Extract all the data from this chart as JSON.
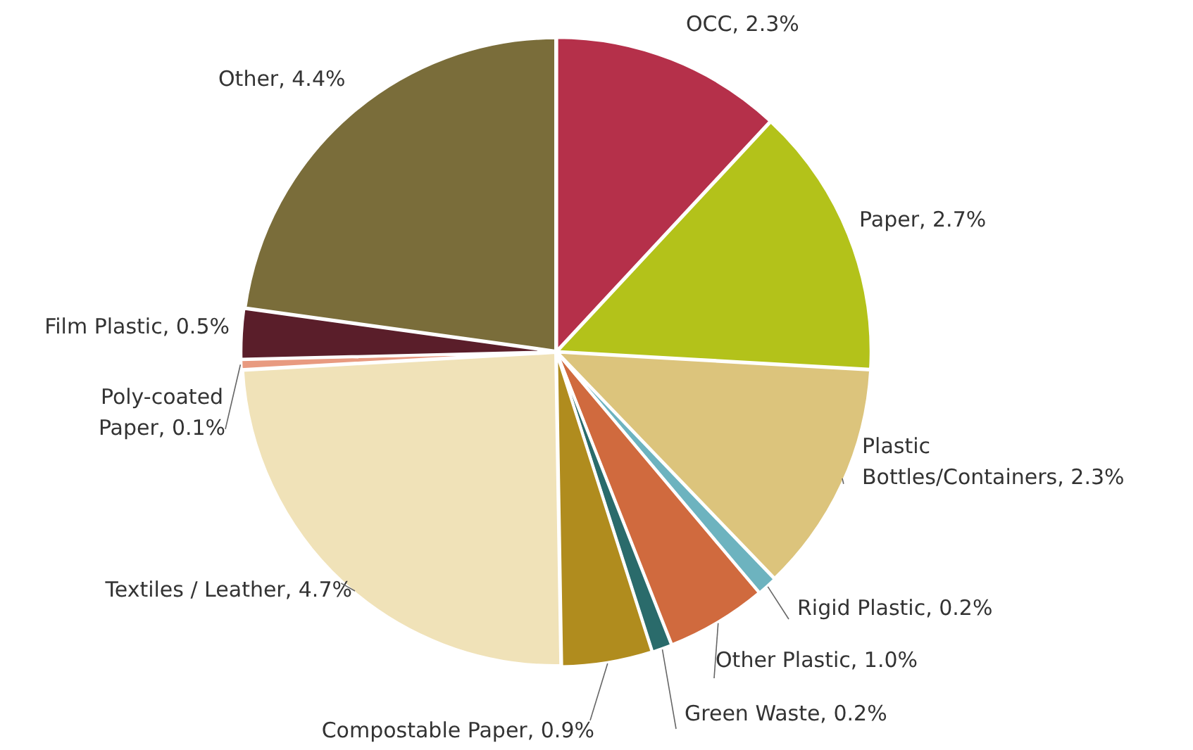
{
  "chart_data": {
    "type": "pie",
    "categories": [
      "OCC",
      "Paper",
      "Plastic Bottles/Containers",
      "Rigid Plastic",
      "Other Plastic",
      "Green Waste",
      "Compostable Paper",
      "Textiles / Leather",
      "Poly-coated Paper",
      "Film Plastic",
      "Other"
    ],
    "values": [
      2.3,
      2.7,
      2.3,
      0.2,
      1.0,
      0.2,
      0.9,
      4.7,
      0.1,
      0.5,
      4.4
    ],
    "value_labels": [
      "2.3%",
      "2.7%",
      "2.3%",
      "0.2%",
      "1.0%",
      "0.2%",
      "0.9%",
      "4.7%",
      "0.1%",
      "0.5%",
      "4.4%"
    ],
    "colors": [
      "#b5304a",
      "#b3c21a",
      "#dcc47c",
      "#6db3bf",
      "#d06a3e",
      "#2a6b6b",
      "#b08c1e",
      "#f0e2b8",
      "#e89a80",
      "#5a1e2a",
      "#7a6d3a"
    ],
    "legend": false
  }
}
